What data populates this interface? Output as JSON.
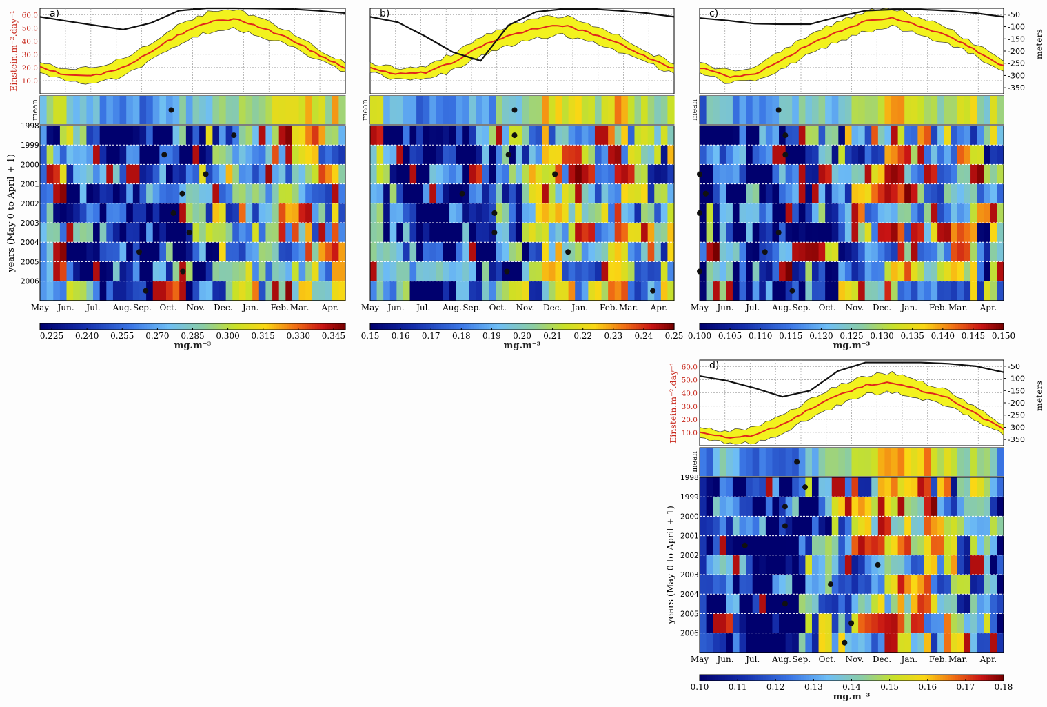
{
  "chart_data": {
    "type": "heatmap",
    "months": [
      "May",
      "Jun.",
      "Jul.",
      "Aug.",
      "Sep.",
      "Oct.",
      "Nov.",
      "Dec.",
      "Jan.",
      "Feb.",
      "Mar.",
      "Apr."
    ],
    "years": [
      "1998",
      "1999",
      "2000",
      "2001",
      "2002",
      "2003",
      "2004",
      "2005",
      "2006"
    ],
    "mean_label": "mean",
    "years_axis_label": "years (May 0 to April + 1)",
    "par_axis_label": "Einstein.m⁻².day⁻¹",
    "par_ticks": [
      "10.0",
      "20.0",
      "30.0",
      "40.0",
      "50.0",
      "60.0"
    ],
    "par_range": [
      0,
      65
    ],
    "depth_axis_label": "meters",
    "depth_ticks": [
      "-50",
      "-100",
      "-150",
      "-200",
      "-250",
      "-300",
      "-350"
    ],
    "depth_range": [
      -25,
      -375
    ],
    "units_label": "mg.m⁻³",
    "colors": {
      "par_mean": "#e0261c",
      "par_band": "#f2f21e",
      "mld_line": "#111111",
      "marker": "#111111"
    },
    "panels": [
      {
        "panel_label": "a)",
        "par_mean_12": [
          20,
          14,
          14,
          20,
          32,
          45,
          54,
          57,
          50,
          42,
          30,
          20
        ],
        "mld_12": [
          -60,
          -78,
          -95,
          -112,
          -85,
          -35,
          -25,
          -25,
          -26,
          -28,
          -35,
          -45
        ],
        "colorbar_ticks": [
          "0.225",
          "0.240",
          "0.255",
          "0.270",
          "0.285",
          "0.300",
          "0.315",
          "0.330",
          "0.345"
        ],
        "colorbar_range": [
          0.22,
          0.35
        ],
        "bloom_day": [
          0.635,
          0.407,
          0.543,
          0.466,
          0.437,
          0.489,
          0.325,
          0.468,
          0.346
        ],
        "mean_bloom_day": 0.43
      },
      {
        "panel_label": "b)",
        "par_mean_12": [
          20,
          15,
          16,
          24,
          36,
          44,
          50,
          52,
          46,
          38,
          28,
          19
        ],
        "mld_12": [
          -60,
          -82,
          -140,
          -205,
          -240,
          -95,
          -40,
          -28,
          -28,
          -35,
          -45,
          -60
        ],
        "colorbar_ticks": [
          "0.15",
          "0.16",
          "0.17",
          "0.18",
          "0.19",
          "0.20",
          "0.21",
          "0.22",
          "0.23",
          "0.24",
          "0.25"
        ],
        "colorbar_range": [
          0.15,
          0.25
        ],
        "bloom_day": [
          0.475,
          0.455,
          0.608,
          0.303,
          0.409,
          0.409,
          0.651,
          0.45,
          0.93
        ],
        "mean_bloom_day": 0.475
      },
      {
        "panel_label": "c)",
        "par_mean_12": [
          20,
          13,
          15,
          26,
          38,
          47,
          55,
          58,
          51,
          44,
          33,
          21
        ],
        "mld_12": [
          -65,
          -75,
          -88,
          -90,
          -90,
          -60,
          -35,
          -30,
          -30,
          -35,
          -45,
          -60
        ],
        "colorbar_ticks": [
          "0.100",
          "0.105",
          "0.110",
          "0.115",
          "0.120",
          "0.125",
          "0.130",
          "0.135",
          "0.140",
          "0.145",
          "0.150"
        ],
        "colorbar_range": [
          0.1,
          0.15
        ],
        "bloom_day": [
          0.282,
          0.282,
          0.0,
          0.02,
          0.0,
          0.26,
          0.215,
          0.0,
          0.305
        ],
        "mean_bloom_day": 0.26
      },
      {
        "panel_label": "d)",
        "par_mean_12": [
          10,
          6,
          8,
          16,
          28,
          38,
          46,
          48,
          42,
          36,
          24,
          12
        ],
        "mld_12": [
          -90,
          -110,
          -140,
          -175,
          -150,
          -70,
          -35,
          -35,
          -35,
          -40,
          -50,
          -75
        ],
        "colorbar_ticks": [
          "0.10",
          "0.11",
          "0.12",
          "0.13",
          "0.14",
          "0.15",
          "0.16",
          "0.17",
          "0.18"
        ],
        "colorbar_range": [
          0.1,
          0.18
        ],
        "bloom_day": [
          0.347,
          0.281,
          0.281,
          0.149,
          0.586,
          0.431,
          0.281,
          0.499,
          0.477
        ],
        "mean_bloom_day": 0.32
      }
    ]
  }
}
